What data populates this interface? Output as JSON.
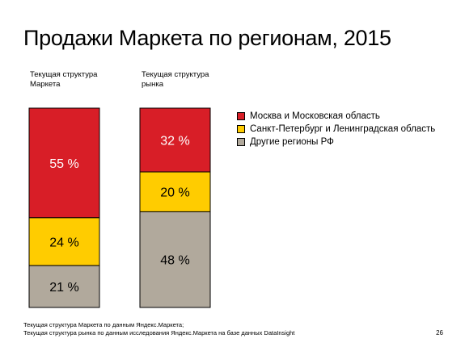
{
  "slide": {
    "title": "Продажи Маркета по регионам, 2015",
    "page_number": "26"
  },
  "footnote": {
    "lines": [
      "Текущая структура Маркета по данным Яндекс.Маркета;",
      "Текущая структура рынка по данным исследования Яндекс.Маркета на базе данных DataInsight"
    ]
  },
  "chart_data": {
    "type": "bar",
    "stacked": true,
    "normalized": true,
    "categories": [
      {
        "lines": [
          "Текущая структура",
          "Маркета"
        ]
      },
      {
        "lines": [
          "Текущая структура",
          "рынка"
        ]
      }
    ],
    "series": [
      {
        "name": "Москва и Московская область",
        "color": "#d81e27",
        "values": [
          55,
          32
        ],
        "labels": [
          "55 %",
          "32 %"
        ]
      },
      {
        "name": "Санкт-Петербург и Ленинградская область",
        "color": "#ffcc00",
        "values": [
          24,
          20
        ],
        "labels": [
          "24 %",
          "20 %"
        ]
      },
      {
        "name": "Другие регионы РФ",
        "color": "#b1a99c",
        "values": [
          21,
          48
        ],
        "labels": [
          "21 %",
          "48 %"
        ]
      }
    ],
    "ylim": [
      0,
      100
    ],
    "grid": false,
    "legend_position": "right"
  }
}
